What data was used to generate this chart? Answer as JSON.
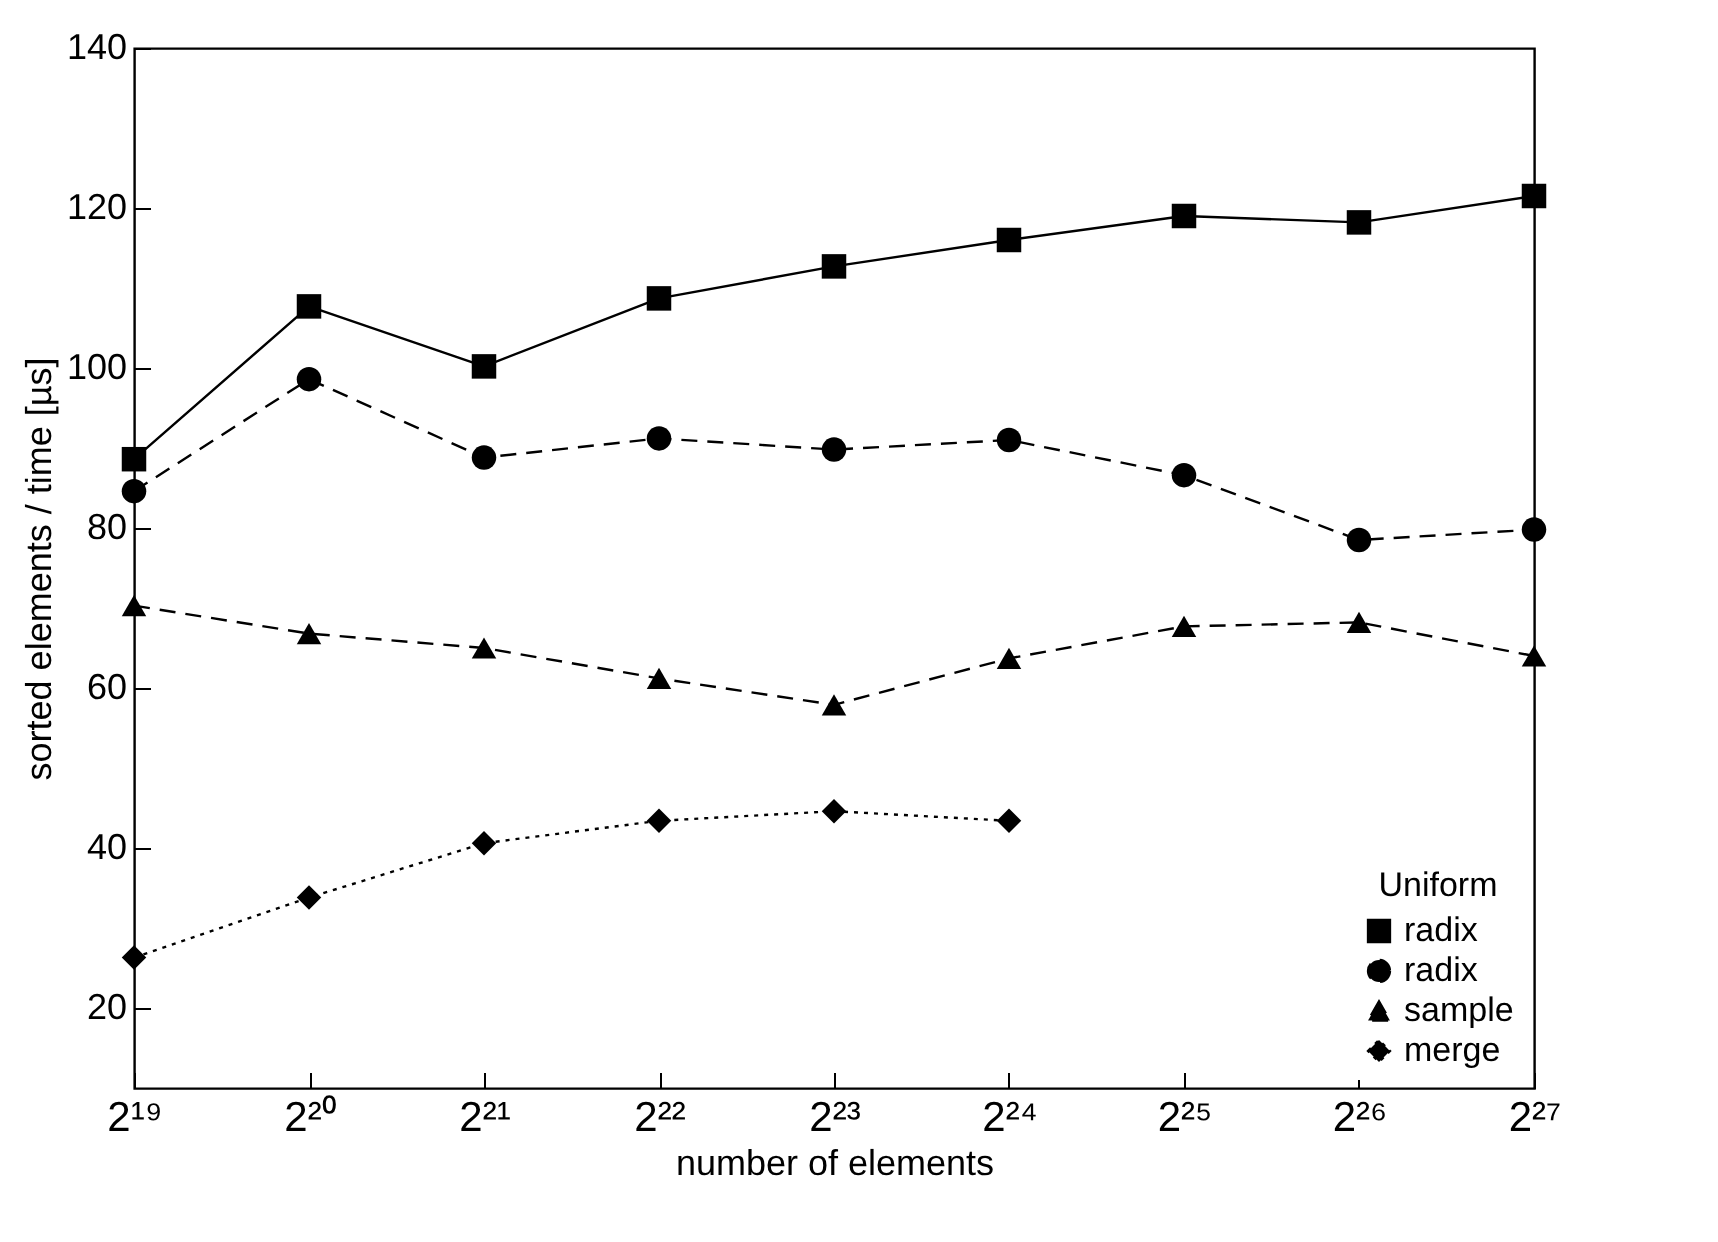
{
  "chart_data": {
    "type": "line",
    "xlabel": "number of elements",
    "ylabel": "sorted elements / time [µs]",
    "legend_title": "Uniform",
    "legend": "bottom right",
    "log": "x",
    "grid": false,
    "x": [
      524288,
      1048576,
      2097152,
      4194304,
      8388608,
      16777216,
      33554432,
      67108864,
      134217728
    ],
    "xlim": [
      524288,
      134217728
    ],
    "xticks": [
      {
        "value": 524288,
        "label": "2¹⁹"
      },
      {
        "value": 1048576,
        "label": "2²⁰"
      },
      {
        "value": 2097152,
        "label": "2²¹"
      },
      {
        "value": 4194304,
        "label": "2²²"
      },
      {
        "value": 8388608,
        "label": "2²³"
      },
      {
        "value": 16777216,
        "label": "2²⁴"
      },
      {
        "value": 33554432,
        "label": "2²⁵"
      },
      {
        "value": 67108864,
        "label": "2²⁶"
      },
      {
        "value": 134217728,
        "label": "2²⁷"
      }
    ],
    "ylim": [
      10,
      140
    ],
    "yticks": [
      20,
      40,
      60,
      80,
      100,
      120,
      140
    ],
    "series": [
      {
        "name": "radix",
        "color": "#000000",
        "marker": "square",
        "line_style": "solid",
        "values": [
          88.6,
          107.7,
          100.2,
          108.7,
          112.7,
          116,
          119,
          118.2,
          121.5
        ]
      },
      {
        "name": "radix",
        "color": "#000000",
        "marker": "circle",
        "line_style": "dashed",
        "values": [
          84.6,
          98.6,
          88.8,
          91.2,
          89.8,
          91,
          86.6,
          78.5,
          79.8
        ]
      },
      {
        "name": "sample",
        "color": "#000000",
        "marker": "triangle",
        "line_style": "dashed",
        "values": [
          70.3,
          66.8,
          65,
          61.2,
          57.9,
          63.7,
          67.7,
          68.2,
          64
        ]
      },
      {
        "name": "merge",
        "color": "#000000",
        "marker": "diamond",
        "line_style": "dotted",
        "values": [
          26.3,
          33.8,
          40.6,
          43.4,
          44.6,
          43.4,
          null,
          null,
          null
        ]
      }
    ]
  }
}
